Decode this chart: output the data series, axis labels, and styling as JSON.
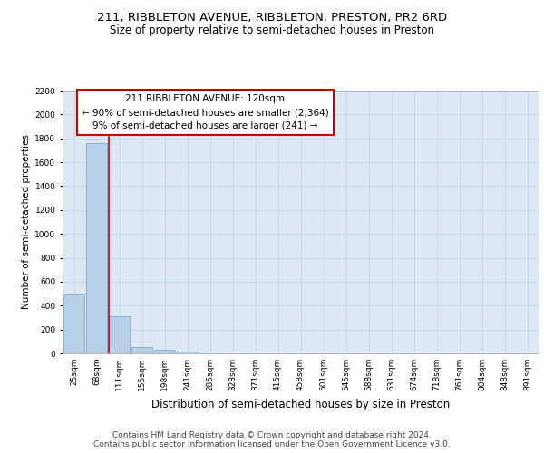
{
  "title1": "211, RIBBLETON AVENUE, RIBBLETON, PRESTON, PR2 6RD",
  "title2": "Size of property relative to semi-detached houses in Preston",
  "xlabel": "Distribution of semi-detached houses by size in Preston",
  "ylabel": "Number of semi-detached properties",
  "categories": [
    "25sqm",
    "68sqm",
    "111sqm",
    "155sqm",
    "198sqm",
    "241sqm",
    "285sqm",
    "328sqm",
    "371sqm",
    "415sqm",
    "458sqm",
    "501sqm",
    "545sqm",
    "588sqm",
    "631sqm",
    "674sqm",
    "718sqm",
    "761sqm",
    "804sqm",
    "848sqm",
    "891sqm"
  ],
  "values": [
    490,
    1760,
    310,
    55,
    30,
    15,
    0,
    0,
    0,
    0,
    0,
    0,
    0,
    0,
    0,
    0,
    0,
    0,
    0,
    0,
    0
  ],
  "bar_color": "#b8d0e8",
  "bar_edge_color": "#7aaed6",
  "vline_color": "#cc0000",
  "vline_x_index": 2,
  "annotation_title": "211 RIBBLETON AVENUE: 120sqm",
  "annotation_line1": "← 90% of semi-detached houses are smaller (2,364)",
  "annotation_line2": "9% of semi-detached houses are larger (241) →",
  "annotation_box_color": "#ffffff",
  "annotation_box_edge": "#cc0000",
  "ylim": [
    0,
    2200
  ],
  "yticks": [
    0,
    200,
    400,
    600,
    800,
    1000,
    1200,
    1400,
    1600,
    1800,
    2000,
    2200
  ],
  "grid_color": "#c8d8e8",
  "bg_color": "#dce8f4",
  "footer1": "Contains HM Land Registry data © Crown copyright and database right 2024.",
  "footer2": "Contains public sector information licensed under the Open Government Licence v3.0.",
  "title_fontsize": 9.5,
  "subtitle_fontsize": 8.5,
  "ylabel_fontsize": 7.5,
  "xlabel_fontsize": 8.5,
  "tick_fontsize": 6.5,
  "annot_fontsize": 7.5,
  "footer_fontsize": 6.5
}
